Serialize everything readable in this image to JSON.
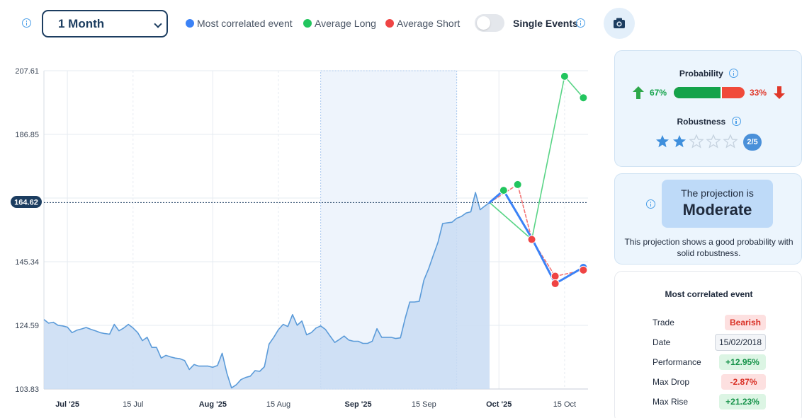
{
  "toolbar": {
    "period_value": "1 Month",
    "legend": [
      {
        "label": "Most correlated event",
        "color": "#3b82f6"
      },
      {
        "label": "Average Long",
        "color": "#22c55e"
      },
      {
        "label": "Average Short",
        "color": "#ef4444"
      }
    ],
    "single_events_label": "Single Events",
    "single_events_on": false,
    "camera_icon": "camera-icon",
    "info_icon": "info-icon"
  },
  "probability": {
    "heading": "Probability",
    "long_pct_text": "67%",
    "short_pct_text": "33%",
    "long_fraction": 0.67,
    "long_color": "#14a34a",
    "short_color": "#f04a3a",
    "up_icon": "arrow-up-icon",
    "down_icon": "arrow-down-icon"
  },
  "robustness": {
    "heading": "Robustness",
    "stars_filled": 2,
    "stars_total": 5,
    "badge": "2/5"
  },
  "projection": {
    "prefix": "The projection is",
    "level": "Moderate",
    "description": "This projection shows a good probability with solid robustness."
  },
  "correlated_event": {
    "heading": "Most correlated event",
    "rows": [
      {
        "label": "Trade",
        "value": "Bearish",
        "style": "red"
      },
      {
        "label": "Date",
        "value": "15/02/2018",
        "style": "plain"
      },
      {
        "label": "Performance",
        "value": "+12.95%",
        "style": "green"
      },
      {
        "label": "Max Drop",
        "value": "-2.87%",
        "style": "red"
      },
      {
        "label": "Max Rise",
        "value": "+21.23%",
        "style": "green"
      }
    ]
  },
  "chart_data": {
    "type": "area",
    "y_ticks": [
      103.83,
      124.59,
      145.34,
      186.85,
      207.61
    ],
    "ylim": [
      103.83,
      207.61
    ],
    "current_price": 164.62,
    "x_ticks": [
      {
        "label": "Jul '25",
        "bold": true,
        "date": "2025-07-01"
      },
      {
        "label": "15 Jul",
        "bold": false,
        "date": "2025-07-15"
      },
      {
        "label": "Aug '25",
        "bold": true,
        "date": "2025-08-01"
      },
      {
        "label": "15 Aug",
        "bold": false,
        "date": "2025-08-15"
      },
      {
        "label": "Sep '25",
        "bold": true,
        "date": "2025-09-01"
      },
      {
        "label": "15 Sep",
        "bold": false,
        "date": "2025-09-15"
      },
      {
        "label": "Oct '25",
        "bold": true,
        "date": "2025-10-01"
      },
      {
        "label": "15 Oct",
        "bold": false,
        "date": "2025-10-15"
      }
    ],
    "xlim": [
      "2025-06-26",
      "2025-10-20"
    ],
    "highlight_range": [
      "2025-08-24",
      "2025-09-22"
    ],
    "price_series": {
      "name": "Price",
      "color": "#5b9bd9",
      "fill": "#c9dcf3",
      "points": [
        [
          "2025-06-26",
          126.5
        ],
        [
          "2025-06-27",
          125.3
        ],
        [
          "2025-06-28",
          125.6
        ],
        [
          "2025-06-29",
          124.6
        ],
        [
          "2025-06-30",
          124.4
        ],
        [
          "2025-07-01",
          124.0
        ],
        [
          "2025-07-02",
          122.2
        ],
        [
          "2025-07-03",
          123.0
        ],
        [
          "2025-07-04",
          123.4
        ],
        [
          "2025-07-05",
          123.9
        ],
        [
          "2025-07-06",
          123.3
        ],
        [
          "2025-07-07",
          122.8
        ],
        [
          "2025-07-08",
          122.2
        ],
        [
          "2025-07-09",
          121.9
        ],
        [
          "2025-07-10",
          121.7
        ],
        [
          "2025-07-11",
          124.9
        ],
        [
          "2025-07-12",
          122.8
        ],
        [
          "2025-07-13",
          123.7
        ],
        [
          "2025-07-14",
          124.9
        ],
        [
          "2025-07-15",
          123.7
        ],
        [
          "2025-07-16",
          122.2
        ],
        [
          "2025-07-17",
          119.6
        ],
        [
          "2025-07-18",
          120.7
        ],
        [
          "2025-07-19",
          117.4
        ],
        [
          "2025-07-20",
          117.4
        ],
        [
          "2025-07-21",
          113.9
        ],
        [
          "2025-07-22",
          114.8
        ],
        [
          "2025-07-23",
          114.3
        ],
        [
          "2025-07-24",
          113.9
        ],
        [
          "2025-07-25",
          113.7
        ],
        [
          "2025-07-26",
          113.1
        ],
        [
          "2025-07-27",
          110.2
        ],
        [
          "2025-07-28",
          111.8
        ],
        [
          "2025-07-29",
          111.3
        ],
        [
          "2025-07-30",
          111.3
        ],
        [
          "2025-07-31",
          111.3
        ],
        [
          "2025-08-01",
          110.9
        ],
        [
          "2025-08-02",
          111.5
        ],
        [
          "2025-08-03",
          115.5
        ],
        [
          "2025-08-04",
          109.0
        ],
        [
          "2025-08-05",
          104.2
        ],
        [
          "2025-08-06",
          105.2
        ],
        [
          "2025-08-07",
          106.9
        ],
        [
          "2025-08-08",
          107.6
        ],
        [
          "2025-08-09",
          108.0
        ],
        [
          "2025-08-10",
          109.8
        ],
        [
          "2025-08-11",
          109.6
        ],
        [
          "2025-08-12",
          111.1
        ],
        [
          "2025-08-13",
          118.5
        ],
        [
          "2025-08-14",
          120.7
        ],
        [
          "2025-08-15",
          123.2
        ],
        [
          "2025-08-16",
          124.9
        ],
        [
          "2025-08-17",
          124.2
        ],
        [
          "2025-08-18",
          128.1
        ],
        [
          "2025-08-19",
          124.6
        ],
        [
          "2025-08-20",
          126.0
        ],
        [
          "2025-08-21",
          121.5
        ],
        [
          "2025-08-22",
          122.2
        ],
        [
          "2025-08-23",
          123.7
        ],
        [
          "2025-08-24",
          124.4
        ],
        [
          "2025-08-25",
          123.3
        ],
        [
          "2025-08-26",
          121.1
        ],
        [
          "2025-08-27",
          119.0
        ],
        [
          "2025-08-28",
          120.0
        ],
        [
          "2025-08-29",
          121.1
        ],
        [
          "2025-08-30",
          119.8
        ],
        [
          "2025-08-31",
          119.4
        ],
        [
          "2025-09-01",
          119.4
        ],
        [
          "2025-09-02",
          118.7
        ],
        [
          "2025-09-03",
          118.7
        ],
        [
          "2025-09-04",
          119.4
        ],
        [
          "2025-09-05",
          123.5
        ],
        [
          "2025-09-06",
          120.7
        ],
        [
          "2025-09-07",
          120.7
        ],
        [
          "2025-09-08",
          120.7
        ],
        [
          "2025-09-09",
          120.3
        ],
        [
          "2025-09-10",
          120.5
        ],
        [
          "2025-09-11",
          126.8
        ],
        [
          "2025-09-12",
          132.2
        ],
        [
          "2025-09-13",
          132.2
        ],
        [
          "2025-09-14",
          132.4
        ],
        [
          "2025-09-15",
          139.3
        ],
        [
          "2025-09-16",
          143.0
        ],
        [
          "2025-09-17",
          147.4
        ],
        [
          "2025-09-18",
          151.6
        ],
        [
          "2025-09-19",
          157.8
        ],
        [
          "2025-09-20",
          158.0
        ],
        [
          "2025-09-21",
          158.2
        ],
        [
          "2025-09-22",
          159.5
        ],
        [
          "2025-09-23",
          160.1
        ],
        [
          "2025-09-24",
          161.2
        ],
        [
          "2025-09-25",
          161.6
        ],
        [
          "2025-09-26",
          167.9
        ],
        [
          "2025-09-27",
          162.3
        ],
        [
          "2025-09-28",
          163.5
        ],
        [
          "2025-09-29",
          164.62
        ]
      ]
    },
    "projections": [
      {
        "name": "Most correlated event",
        "color": "#3b82f6",
        "style": "solid",
        "points": [
          [
            "2025-09-29",
            164.62
          ],
          [
            "2025-10-02",
            168.6
          ],
          [
            "2025-10-08",
            153.0
          ],
          [
            "2025-10-13",
            138.2
          ],
          [
            "2025-10-19",
            143.5
          ]
        ]
      },
      {
        "name": "Average Long",
        "color": "#22c55e",
        "style": "solid",
        "points": [
          [
            "2025-09-29",
            164.62
          ],
          [
            "2025-10-08",
            152.6
          ],
          [
            "2025-10-15",
            205.8
          ],
          [
            "2025-10-19",
            198.8
          ]
        ]
      },
      {
        "name": "Average Short",
        "color": "#ef4444",
        "style": "dashed",
        "points": [
          [
            "2025-09-29",
            164.62
          ],
          [
            "2025-10-05",
            170.5
          ],
          [
            "2025-10-08",
            152.6
          ],
          [
            "2025-10-13",
            140.6
          ],
          [
            "2025-10-19",
            142.6
          ]
        ]
      }
    ],
    "markers": [
      {
        "series": "Average Long",
        "color": "#22c55e",
        "points": [
          [
            "2025-10-02",
            168.6
          ],
          [
            "2025-10-05",
            170.5
          ],
          [
            "2025-10-15",
            205.8
          ],
          [
            "2025-10-19",
            198.8
          ]
        ]
      },
      {
        "series": "Most correlated event",
        "color": "#3b82f6",
        "points": [
          [
            "2025-10-19",
            143.5
          ]
        ]
      },
      {
        "series": "Average Short",
        "color": "#ef4444",
        "points": [
          [
            "2025-10-08",
            152.6
          ],
          [
            "2025-10-13",
            140.6
          ],
          [
            "2025-10-13",
            138.2
          ],
          [
            "2025-10-19",
            142.6
          ]
        ]
      }
    ]
  }
}
